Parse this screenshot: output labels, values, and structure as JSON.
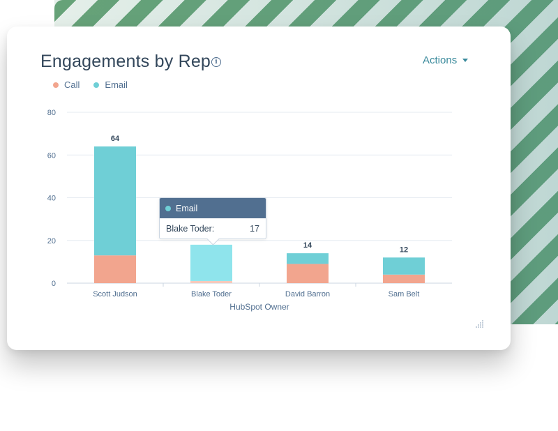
{
  "card": {
    "title": "Engagements by Rep",
    "actions_label": "Actions"
  },
  "colors": {
    "call": "#f2a58e",
    "email": "#6fcfd6",
    "email_highlight": "#8fe4ec",
    "grid": "#e6ebf1",
    "axis_text": "#516f90"
  },
  "tooltip": {
    "series": "Email",
    "owner": "Blake Toder:",
    "value": "17"
  },
  "chart_data": {
    "type": "bar",
    "stacked": true,
    "title": "Engagements by Rep",
    "xlabel": "HubSpot Owner",
    "ylabel": "",
    "categories": [
      "Scott Judson",
      "Blake Toder",
      "David Barron",
      "Sam Belt"
    ],
    "series": [
      {
        "name": "Call",
        "values": [
          13,
          1,
          9,
          4
        ]
      },
      {
        "name": "Email",
        "values": [
          51,
          17,
          5,
          8
        ]
      }
    ],
    "totals": [
      64,
      18,
      14,
      12
    ],
    "total_labels": [
      "64",
      "",
      "14",
      "12"
    ],
    "ylim": [
      0,
      80
    ],
    "yticks": [
      0,
      20,
      40,
      60,
      80
    ],
    "grid": true,
    "legend": "top-left",
    "highlighted": {
      "category": "Blake Toder",
      "series": "Email"
    }
  }
}
